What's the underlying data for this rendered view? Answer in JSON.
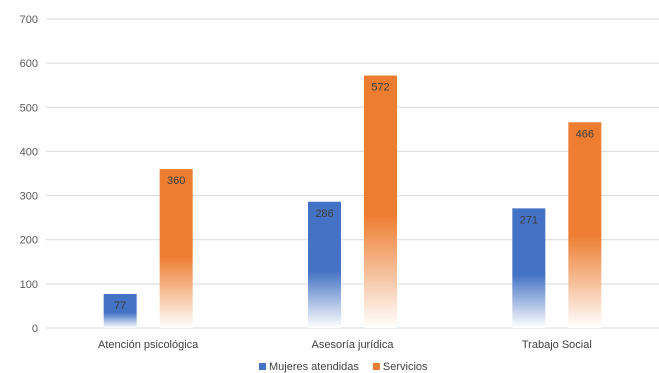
{
  "chart_data": {
    "type": "bar",
    "categories": [
      "Atención psicológica",
      "Asesoría jurídica",
      "Trabajo Social"
    ],
    "series": [
      {
        "name": "Mujeres atendidas",
        "values": [
          77,
          286,
          271
        ],
        "color": "#4472c4"
      },
      {
        "name": "Servicios",
        "values": [
          360,
          572,
          466
        ],
        "color": "#ed7d31"
      }
    ],
    "ylim": [
      0,
      700
    ],
    "yticks": [
      0,
      100,
      200,
      300,
      400,
      500,
      600,
      700
    ],
    "grid": true,
    "legend_position": "bottom",
    "title": "",
    "xlabel": "",
    "ylabel": ""
  }
}
